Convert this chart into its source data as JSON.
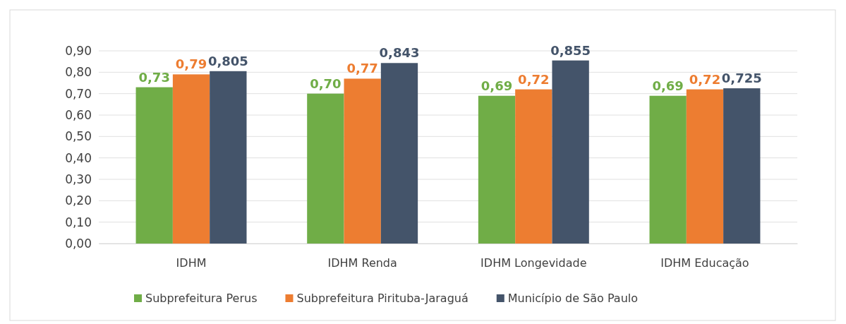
{
  "chart_data": {
    "type": "bar",
    "categories": [
      "IDHM",
      "IDHM Renda",
      "IDHM Longevidade",
      "IDHM Educação"
    ],
    "series": [
      {
        "name": "Subprefeitura Perus",
        "color": "#70ad47",
        "values": [
          0.73,
          0.7,
          0.69,
          0.69
        ],
        "value_labels": [
          "0,73",
          "0,70",
          "0,69",
          "0,69"
        ]
      },
      {
        "name": "Subprefeitura Pirituba-Jaraguá",
        "color": "#ed7d31",
        "values": [
          0.79,
          0.77,
          0.72,
          0.72
        ],
        "value_labels": [
          "0,79",
          "0,77",
          "0,72",
          "0,72"
        ]
      },
      {
        "name": "Município de São Paulo",
        "color": "#44546a",
        "values": [
          0.805,
          0.843,
          0.855,
          0.725
        ],
        "value_labels": [
          "0,805",
          "0,843",
          "0,855",
          "0,725"
        ]
      }
    ],
    "ylim": [
      0,
      0.9
    ],
    "yticks": [
      {
        "value": 0,
        "label": "0,00"
      },
      {
        "value": 0.1,
        "label": "0,10"
      },
      {
        "value": 0.2,
        "label": "0,20"
      },
      {
        "value": 0.3,
        "label": "0,30"
      },
      {
        "value": 0.4,
        "label": "0,40"
      },
      {
        "value": 0.5,
        "label": "0,50"
      },
      {
        "value": 0.6,
        "label": "0,60"
      },
      {
        "value": 0.7,
        "label": "0,70"
      },
      {
        "value": 0.8,
        "label": "0,80"
      },
      {
        "value": 0.9,
        "label": "0,90"
      }
    ],
    "grid": "y",
    "legend": "bottom"
  }
}
